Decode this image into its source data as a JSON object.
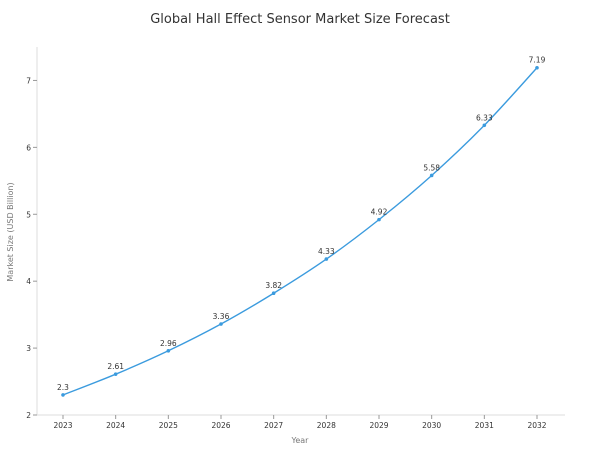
{
  "chart_data": {
    "type": "line",
    "title": "Global Hall Effect Sensor Market Size Forecast",
    "xlabel": "Year",
    "ylabel": "Market Size (USD Billion)",
    "x": [
      "2023",
      "2024",
      "2025",
      "2026",
      "2027",
      "2028",
      "2029",
      "2030",
      "2031",
      "2032"
    ],
    "series": [
      {
        "values": [
          2.3,
          2.61,
          2.96,
          3.36,
          3.82,
          4.33,
          4.92,
          5.58,
          6.33,
          7.19
        ]
      }
    ],
    "data_labels": [
      "2.3",
      "2.61",
      "2.96",
      "3.36",
      "3.82",
      "4.33",
      "4.92",
      "5.58",
      "6.33",
      "7.19"
    ],
    "ylim": [
      2,
      7.5
    ],
    "yticks": [
      2,
      3,
      4,
      5,
      6,
      7
    ],
    "ytick_labels": [
      "2",
      "3",
      "4",
      "5",
      "6",
      "7"
    ],
    "grid": false,
    "line_color": "#3b9bde",
    "marker_color": "#3b9bde"
  }
}
